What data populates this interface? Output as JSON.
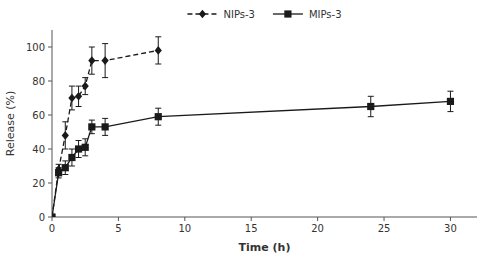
{
  "chart_data": {
    "type": "line",
    "xlabel": "Time (h)",
    "ylabel": "Release (%)",
    "xlim": [
      0,
      32
    ],
    "ylim": [
      0,
      110
    ],
    "xticks": [
      0,
      5,
      10,
      15,
      20,
      25,
      30
    ],
    "yticks": [
      0,
      20,
      40,
      60,
      80,
      100
    ],
    "grid": false,
    "legend": "top",
    "series": [
      {
        "name": "NIPs-3",
        "color": "#1a1a1a",
        "marker": "diamond",
        "line_style": "dashed",
        "x": [
          0,
          0.5,
          1,
          1.5,
          2,
          2.5,
          3,
          4,
          8
        ],
        "values": [
          0,
          28,
          48,
          70,
          71,
          77,
          92,
          92,
          98
        ],
        "errors": [
          0,
          3,
          8,
          7,
          6,
          5,
          8,
          10,
          8
        ]
      },
      {
        "name": "MIPs-3",
        "color": "#1a1a1a",
        "marker": "square",
        "line_style": "solid",
        "x": [
          0,
          0.5,
          1,
          1.5,
          2,
          2.5,
          3,
          4,
          8,
          24,
          30
        ],
        "values": [
          0,
          26,
          29,
          35,
          40,
          41,
          53,
          53,
          59,
          65,
          68
        ],
        "errors": [
          0,
          3,
          4,
          5,
          5,
          5,
          4,
          5,
          5,
          6,
          6
        ]
      }
    ]
  }
}
